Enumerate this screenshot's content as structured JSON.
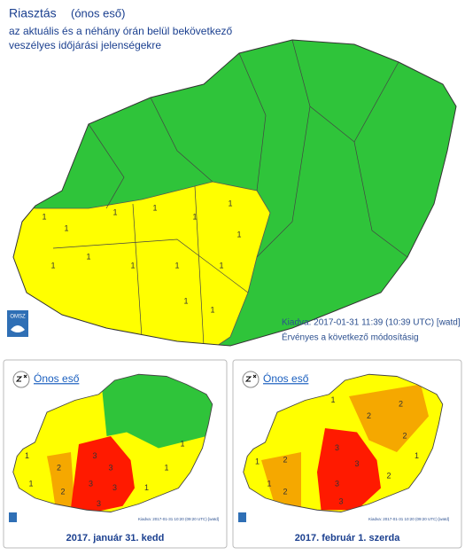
{
  "header": {
    "title": "Riasztás",
    "subtitle": "(ónos eső)",
    "lines": [
      "az aktuális és a néhány órán belül bekövetkező",
      "veszélyes időjárási jelenségekre"
    ]
  },
  "main_map": {
    "issued": "Kiadva: 2017-01-31 11:39 (10:39 UTC) [watd]",
    "validity": "Érvényes a következő módosításig",
    "logo": "OMSZ",
    "region_labels": [
      "1",
      "1",
      "1",
      "1",
      "1",
      "1",
      "1",
      "1",
      "1",
      "1",
      "1",
      "1",
      "1",
      "1"
    ]
  },
  "panels": [
    {
      "link": "Ónos eső",
      "issued": "Kiadva: 2017-01-31 10:20 (09:20 UTC) [watd]",
      "date": "2017. január 31. kedd",
      "region_labels": [
        "1",
        "1",
        "1",
        "1",
        "1",
        "2",
        "2",
        "3",
        "3",
        "3",
        "3",
        "3"
      ]
    },
    {
      "link": "Ónos eső",
      "issued": "Kiadva: 2017-01-31 10:20 (09:20 UTC) [watd]",
      "date": "2017. február 1. szerda",
      "region_labels": [
        "1",
        "1",
        "1",
        "1",
        "2",
        "2",
        "2",
        "2",
        "2",
        "2",
        "3",
        "3",
        "3",
        "3"
      ]
    }
  ]
}
